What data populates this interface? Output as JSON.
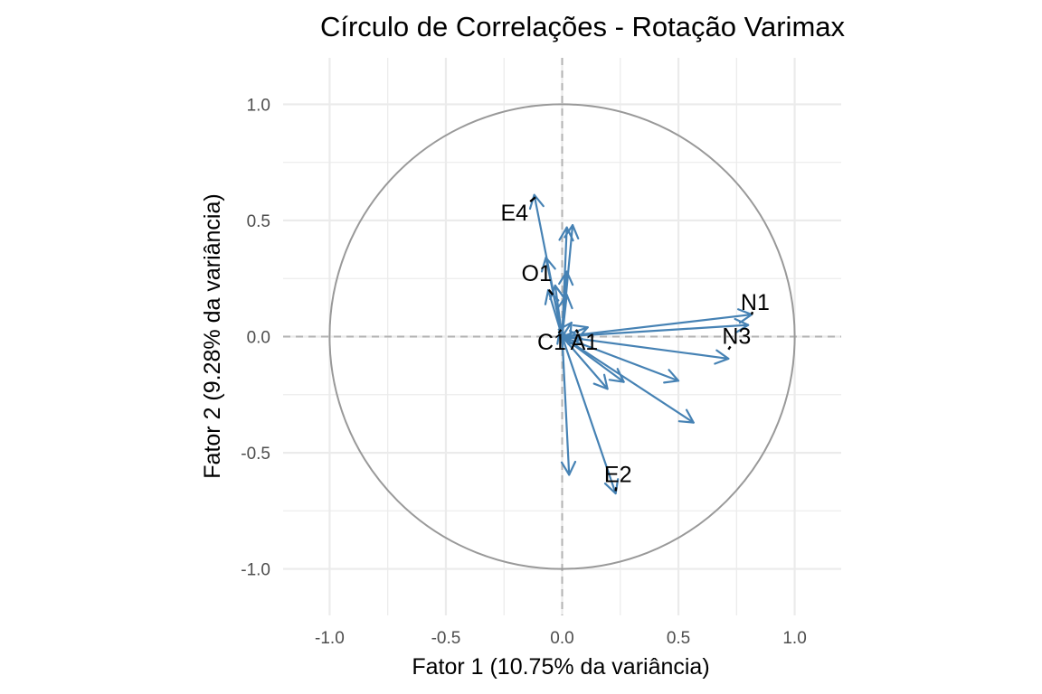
{
  "chart_data": {
    "type": "scatter",
    "subtype": "correlation-circle",
    "title": "Círculo de Correlações - Rotação Varimax",
    "xlabel": "Fator 1 (10.75% da variância)",
    "ylabel": "Fator 2 (9.28% da variância)",
    "xlim": [
      -1.2,
      1.2
    ],
    "ylim": [
      -1.2,
      1.2
    ],
    "x_ticks": [
      -1.0,
      -0.5,
      0.0,
      0.5,
      1.0
    ],
    "y_ticks": [
      -1.0,
      -0.5,
      0.0,
      0.5,
      1.0
    ],
    "x_tick_labels": [
      "-1.0",
      "-0.5",
      "0.0",
      "0.5",
      "1.0"
    ],
    "y_tick_labels": [
      "-1.0",
      "-0.5",
      "0.0",
      "0.5",
      "1.0"
    ],
    "grid": true,
    "unit_circle": true,
    "reference_lines": "dashed at x=0 and y=0",
    "colors": {
      "arrow": "#4682b4",
      "circle": "#999999",
      "grid": "#ebebeb",
      "refline": "#b3b3b3"
    },
    "vectors": [
      {
        "x": 0.815,
        "y": 0.095
      },
      {
        "x": 0.8,
        "y": 0.05
      },
      {
        "x": 0.715,
        "y": -0.095
      },
      {
        "x": 0.565,
        "y": -0.37
      },
      {
        "x": 0.5,
        "y": -0.19
      },
      {
        "x": 0.265,
        "y": -0.195
      },
      {
        "x": 0.195,
        "y": -0.225
      },
      {
        "x": 0.23,
        "y": -0.675
      },
      {
        "x": 0.03,
        "y": -0.595
      },
      {
        "x": -0.12,
        "y": 0.61
      },
      {
        "x": 0.045,
        "y": 0.48
      },
      {
        "x": 0.02,
        "y": 0.47
      },
      {
        "x": -0.07,
        "y": 0.34
      },
      {
        "x": 0.02,
        "y": 0.28
      },
      {
        "x": 0.02,
        "y": 0.18
      },
      {
        "x": -0.03,
        "y": 0.22
      },
      {
        "x": -0.06,
        "y": 0.2
      },
      {
        "x": 0.04,
        "y": 0.06
      },
      {
        "x": 0.11,
        "y": 0.04
      },
      {
        "x": 0.085,
        "y": -0.01
      },
      {
        "x": -0.01,
        "y": 0.03
      }
    ],
    "labels": [
      {
        "text": "N1",
        "x": 0.83,
        "y": 0.14,
        "anchor_x": 0.815,
        "anchor_y": 0.095
      },
      {
        "text": "N3",
        "x": 0.75,
        "y": -0.005,
        "anchor_x": 0.715,
        "anchor_y": -0.055
      },
      {
        "text": "E2",
        "x": 0.24,
        "y": -0.6,
        "anchor_x": 0.23,
        "anchor_y": -0.665
      },
      {
        "text": "E4",
        "x": -0.205,
        "y": 0.525,
        "anchor_x": -0.115,
        "anchor_y": 0.6
      },
      {
        "text": "O1",
        "x": -0.11,
        "y": 0.265,
        "anchor_x": -0.04,
        "anchor_y": 0.18
      },
      {
        "text": "C1",
        "x": -0.045,
        "y": -0.03,
        "anchor_x": -0.005,
        "anchor_y": 0.03
      },
      {
        "text": "A1",
        "x": 0.095,
        "y": -0.03,
        "anchor_x": 0.06,
        "anchor_y": 0.03
      }
    ]
  }
}
